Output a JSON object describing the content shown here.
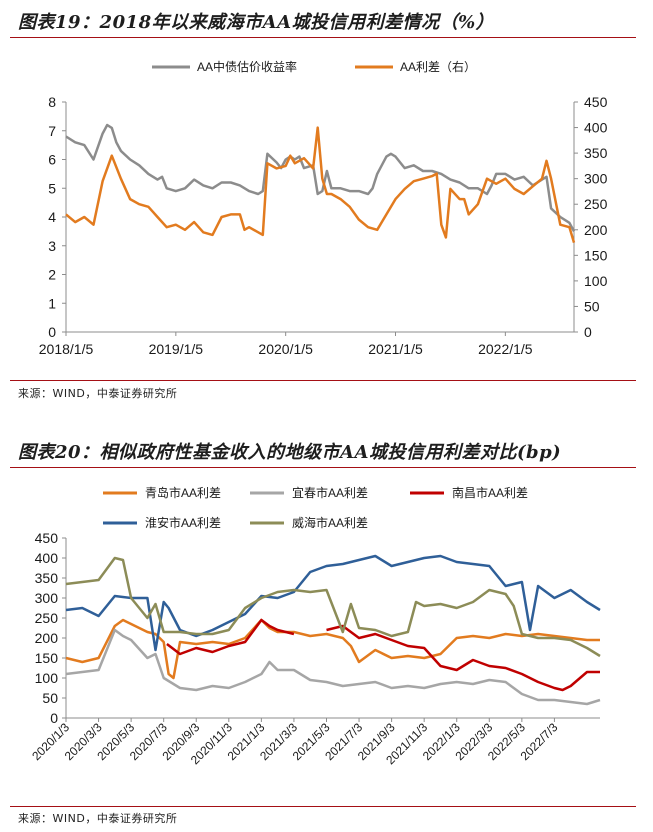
{
  "figure19": {
    "title": "图表19：2018年以来威海市AA城投信用利差情况（%）",
    "source": "来源：WIND，中泰证券研究所",
    "chart_data": {
      "type": "line",
      "title": "图表19：2018年以来威海市AA城投信用利差情况（%）",
      "x_ticks": [
        "2018/1/5",
        "2019/1/5",
        "2020/1/5",
        "2021/1/5",
        "2022/1/5"
      ],
      "x_tick_pos": [
        0,
        12,
        24,
        36,
        48
      ],
      "x_range": [
        0,
        55.5
      ],
      "y_left_ticks": [
        "0",
        "1",
        "2",
        "3",
        "4",
        "5",
        "6",
        "7",
        "8"
      ],
      "y_left_range": [
        0,
        8
      ],
      "y_right_ticks": [
        "0",
        "50",
        "100",
        "150",
        "200",
        "250",
        "300",
        "350",
        "400",
        "450"
      ],
      "y_right_range": [
        0,
        450
      ],
      "legend_position": "top",
      "series": [
        {
          "name": "AA中债估价收益率",
          "axis": "left",
          "color": "#8c8c8c",
          "x": [
            0,
            1,
            2,
            3,
            4,
            4.5,
            5,
            5.5,
            6,
            7,
            8,
            9,
            10,
            10.5,
            11,
            12,
            13,
            14,
            15,
            16,
            17,
            18,
            19,
            20,
            21,
            21.5,
            22,
            23,
            23.5,
            24,
            24.5,
            25,
            25.5,
            26,
            27,
            27.5,
            28,
            28.5,
            29,
            30,
            31,
            32,
            33,
            33.5,
            34,
            35,
            35.5,
            36,
            37,
            38,
            39,
            40,
            41,
            42,
            43,
            44,
            45,
            46,
            46.5,
            47,
            48,
            49,
            50,
            51,
            52,
            52.5,
            53,
            54,
            55,
            55.5
          ],
          "values": [
            6.8,
            6.6,
            6.5,
            6.0,
            6.9,
            7.2,
            7.1,
            6.6,
            6.3,
            6.0,
            5.8,
            5.5,
            5.3,
            5.4,
            5.0,
            4.9,
            5.0,
            5.3,
            5.1,
            5.0,
            5.2,
            5.2,
            5.1,
            4.9,
            4.8,
            4.9,
            6.2,
            5.9,
            5.7,
            6.0,
            6.1,
            6.0,
            6.1,
            5.7,
            5.8,
            4.8,
            4.9,
            5.6,
            5.0,
            5.0,
            4.9,
            4.9,
            4.8,
            5.0,
            5.5,
            6.1,
            6.2,
            6.1,
            5.7,
            5.8,
            5.6,
            5.6,
            5.5,
            5.3,
            5.2,
            5.0,
            5.0,
            4.8,
            5.1,
            5.5,
            5.5,
            5.3,
            5.4,
            5.1,
            5.3,
            5.4,
            4.3,
            4.0,
            3.8,
            3.5
          ]
        },
        {
          "name": "AA利差（右）",
          "axis": "right",
          "color": "#e27b1f",
          "x": [
            0,
            1,
            2,
            3,
            4,
            5,
            6,
            7,
            8,
            9,
            9.5,
            10,
            11,
            12,
            13,
            14,
            15,
            16,
            17,
            18,
            19,
            19.5,
            20,
            21,
            21.5,
            22,
            23,
            24,
            24.5,
            25,
            26,
            27,
            27.5,
            28,
            28.5,
            29,
            30,
            31,
            32,
            33,
            34,
            35,
            36,
            37,
            38,
            39,
            40,
            40.5,
            41,
            41.5,
            42,
            43,
            43.5,
            44,
            45,
            46,
            47,
            47.5,
            48,
            49,
            50,
            51,
            52,
            52.5,
            53,
            54,
            55,
            55.5
          ],
          "values": [
            230,
            215,
            225,
            210,
            295,
            345,
            300,
            260,
            250,
            245,
            235,
            225,
            205,
            210,
            200,
            215,
            195,
            190,
            225,
            230,
            230,
            200,
            205,
            195,
            190,
            330,
            320,
            325,
            345,
            330,
            340,
            320,
            400,
            300,
            270,
            270,
            260,
            245,
            220,
            205,
            200,
            230,
            260,
            280,
            295,
            300,
            305,
            310,
            210,
            185,
            280,
            260,
            260,
            230,
            250,
            300,
            290,
            295,
            300,
            280,
            270,
            285,
            300,
            335,
            300,
            210,
            205,
            175
          ]
        }
      ]
    }
  },
  "figure20": {
    "title": "图表20：相似政府性基金收入的地级市AA城投信用利差对比(bp)",
    "source": "来源：WIND，中泰证券研究所",
    "chart_data": {
      "type": "line",
      "title": "图表20：相似政府性基金收入的地级市AA城投信用利差对比(bp)",
      "x_ticks": [
        "2020/1/3",
        "2020/3/3",
        "2020/5/3",
        "2020/7/3",
        "2020/9/3",
        "2020/11/3",
        "2021/1/3",
        "2021/3/3",
        "2021/5/3",
        "2021/7/3",
        "2021/9/3",
        "2021/11/3",
        "2022/1/3",
        "2022/3/3",
        "2022/5/3",
        "2022/7/3"
      ],
      "x_range": [
        0,
        32.8
      ],
      "y_ticks": [
        "0",
        "50",
        "100",
        "150",
        "200",
        "250",
        "300",
        "350",
        "400",
        "450"
      ],
      "y_range": [
        0,
        450
      ],
      "legend_position": "top",
      "series": [
        {
          "name": "青岛市AA利差",
          "color": "#e27b1f",
          "x": [
            0,
            1,
            2,
            3,
            3.5,
            4,
            5,
            5.5,
            6,
            6.3,
            6.6,
            7,
            8,
            9,
            10,
            11,
            12,
            12.5,
            13,
            14,
            15,
            16,
            17,
            17.5,
            18,
            19,
            20,
            21,
            22,
            23,
            24,
            25,
            26,
            27,
            28,
            29,
            30,
            31,
            32,
            32.8
          ],
          "values": [
            150,
            140,
            150,
            230,
            245,
            235,
            215,
            210,
            190,
            110,
            100,
            190,
            185,
            190,
            185,
            200,
            245,
            225,
            215,
            215,
            205,
            210,
            200,
            180,
            140,
            170,
            150,
            155,
            150,
            160,
            200,
            205,
            200,
            210,
            205,
            210,
            205,
            200,
            195,
            195
          ]
        },
        {
          "name": "宜春市AA利差",
          "color": "#a6a6a6",
          "x": [
            0,
            1,
            2,
            3,
            3.5,
            4,
            5,
            5.5,
            6,
            7,
            8,
            9,
            10,
            11,
            12,
            12.5,
            13,
            14,
            15,
            16,
            17,
            18,
            19,
            20,
            21,
            22,
            23,
            24,
            25,
            26,
            27,
            28,
            29,
            30,
            31,
            32,
            32.8
          ],
          "values": [
            110,
            115,
            120,
            220,
            205,
            195,
            150,
            160,
            100,
            75,
            70,
            80,
            75,
            90,
            110,
            140,
            120,
            120,
            95,
            90,
            80,
            85,
            90,
            75,
            80,
            75,
            85,
            90,
            85,
            95,
            90,
            60,
            45,
            45,
            40,
            35,
            45
          ]
        },
        {
          "name": "南昌市AA利差",
          "color": "#c00000",
          "segments": [
            {
              "x": [
                6.2,
                7,
                8,
                9,
                10,
                11,
                12,
                12.5,
                13,
                13.5,
                14
              ],
              "values": [
                185,
                160,
                175,
                165,
                180,
                190,
                245,
                230,
                220,
                215,
                210
              ]
            },
            {
              "x": [
                16,
                17,
                18,
                19,
                20,
                21,
                22,
                23,
                24,
                25,
                26,
                27,
                28,
                29,
                30,
                30.5,
                31,
                32,
                32.8
              ],
              "values": [
                220,
                230,
                200,
                210,
                195,
                180,
                175,
                130,
                120,
                145,
                130,
                125,
                110,
                90,
                75,
                70,
                80,
                115,
                115
              ]
            }
          ]
        },
        {
          "name": "淮安市AA利差",
          "color": "#2f5f98",
          "x": [
            0,
            1,
            2,
            3,
            4,
            5,
            5.5,
            6,
            6.3,
            7,
            8,
            9,
            10,
            11,
            12,
            13,
            14,
            15,
            16,
            17,
            18,
            19,
            20,
            21,
            22,
            23,
            24,
            25,
            26,
            27,
            28,
            28.5,
            29,
            30,
            31,
            32,
            32.8
          ],
          "values": [
            270,
            275,
            255,
            305,
            300,
            300,
            170,
            290,
            275,
            220,
            205,
            220,
            240,
            260,
            305,
            300,
            315,
            365,
            380,
            385,
            395,
            405,
            380,
            390,
            400,
            405,
            390,
            385,
            380,
            330,
            340,
            220,
            330,
            300,
            320,
            290,
            270
          ]
        },
        {
          "name": "威海市AA利差",
          "color": "#8c8c57",
          "x": [
            0,
            1,
            2,
            3,
            3.5,
            4,
            5,
            5.5,
            6,
            7,
            8,
            9,
            10,
            11,
            12,
            13,
            14,
            15,
            16,
            17,
            17.5,
            18,
            19,
            20,
            21,
            21.5,
            22,
            23,
            24,
            25,
            26,
            27,
            27.5,
            28,
            29,
            30,
            31,
            32,
            32.8
          ],
          "values": [
            335,
            340,
            345,
            400,
            395,
            300,
            250,
            285,
            215,
            215,
            210,
            210,
            220,
            275,
            300,
            315,
            320,
            315,
            320,
            215,
            285,
            225,
            220,
            205,
            215,
            290,
            280,
            285,
            275,
            290,
            320,
            310,
            280,
            210,
            200,
            200,
            195,
            175,
            155
          ]
        }
      ]
    }
  }
}
